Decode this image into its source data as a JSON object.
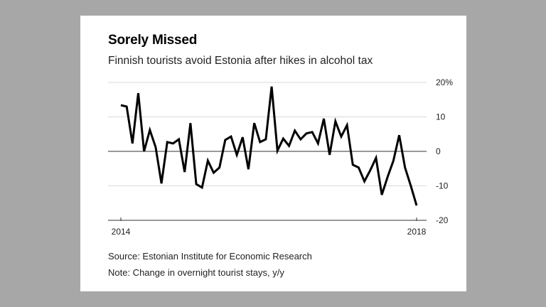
{
  "chart_data": {
    "type": "line",
    "title": "Sorely Missed",
    "subtitle": "Finnish tourists avoid Estonia after hikes in alcohol tax",
    "xlabel": "",
    "ylabel": "",
    "x_tick_labels": [
      "2014",
      "2018"
    ],
    "x_range": [
      "2014",
      "2018"
    ],
    "y_ticks": [
      20,
      10,
      0,
      -10,
      -20
    ],
    "y_tick_labels": [
      "20%",
      "10",
      "0",
      "-10",
      "-20"
    ],
    "ylim": [
      -20,
      20
    ],
    "grid": true,
    "legend": "none",
    "series": [
      {
        "name": "Change in overnight tourist stays, y/y",
        "color": "#000000",
        "values": [
          13.4,
          13.0,
          2.3,
          16.9,
          0.0,
          6.2,
          1.2,
          -9.3,
          2.7,
          2.3,
          3.5,
          -6.0,
          8.2,
          -9.5,
          -10.5,
          -2.7,
          -6.2,
          -4.7,
          3.3,
          4.3,
          -1.0,
          4.1,
          -5.2,
          8.2,
          2.7,
          3.5,
          18.8,
          0.2,
          3.7,
          1.6,
          6.0,
          3.5,
          5.2,
          5.6,
          2.3,
          9.5,
          -1.0,
          8.7,
          4.3,
          7.6,
          -3.9,
          -4.7,
          -8.7,
          -5.5,
          -1.9,
          -12.6,
          -7.4,
          -2.7,
          4.7,
          -4.7,
          -10.0,
          -15.7
        ]
      }
    ]
  },
  "footnotes": {
    "source": "Source: Estonian Institute for Economic Research",
    "note": "Note: Change in overnight tourist stays, y/y"
  }
}
